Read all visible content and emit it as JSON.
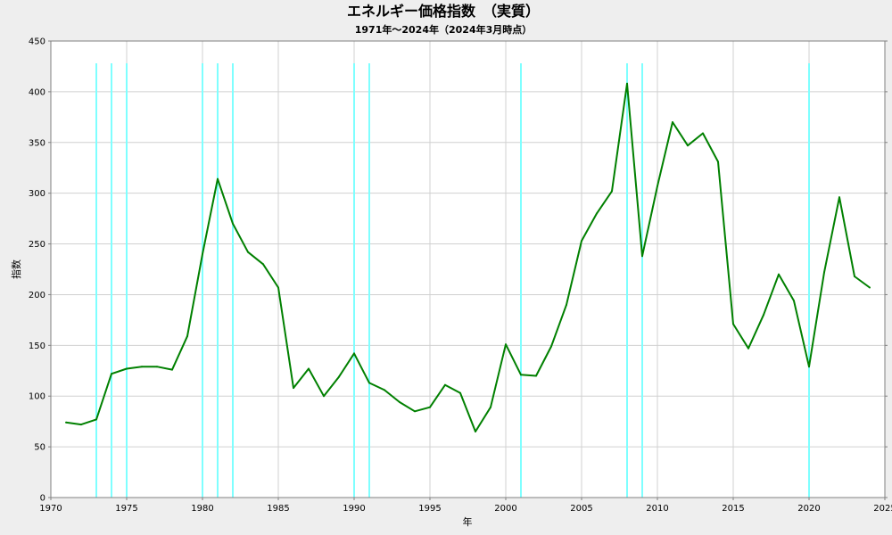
{
  "chart_data": {
    "type": "line",
    "title": "エネルギー価格指数　（実質）",
    "subtitle": "1971年～2024年（2024年3月時点）",
    "xlabel": "年",
    "ylabel": "指数",
    "xlim": [
      1970,
      2025
    ],
    "ylim": [
      0,
      450
    ],
    "x_ticks": [
      1970,
      1975,
      1980,
      1985,
      1990,
      1995,
      2000,
      2005,
      2010,
      2015,
      2020,
      2025
    ],
    "y_ticks": [
      0,
      50,
      100,
      150,
      200,
      250,
      300,
      350,
      400,
      450
    ],
    "grid": true,
    "background": "#ffffff",
    "line_color": "#008000",
    "highlight_color": "#7fffff",
    "highlight_years": [
      1973,
      1974,
      1975,
      1980,
      1981,
      1982,
      1990,
      1991,
      2001,
      2008,
      2009,
      2020
    ],
    "series": [
      {
        "x": [
          1971,
          1972,
          1973,
          1974,
          1975,
          1976,
          1977,
          1978,
          1979,
          1980,
          1981,
          1982,
          1983,
          1984,
          1985,
          1986,
          1987,
          1988,
          1989,
          1990,
          1991,
          1992,
          1993,
          1994,
          1995,
          1996,
          1997,
          1998,
          1999,
          2000,
          2001,
          2002,
          2003,
          2004,
          2005,
          2006,
          2007,
          2008,
          2009,
          2010,
          2011,
          2012,
          2013,
          2014,
          2015,
          2016,
          2017,
          2018,
          2019,
          2020,
          2021,
          2022,
          2023,
          2024
        ],
        "values": [
          74,
          72,
          77,
          122,
          127,
          129,
          129,
          126,
          159,
          240,
          314,
          270,
          242,
          230,
          207,
          108,
          127,
          100,
          119,
          142,
          113,
          106,
          94,
          85,
          89,
          111,
          103,
          65,
          89,
          151,
          121,
          120,
          149,
          190,
          253,
          280,
          302,
          408,
          238,
          307,
          370,
          347,
          359,
          331,
          171,
          147,
          180,
          220,
          194,
          129,
          222,
          296,
          218,
          207
        ]
      }
    ]
  }
}
